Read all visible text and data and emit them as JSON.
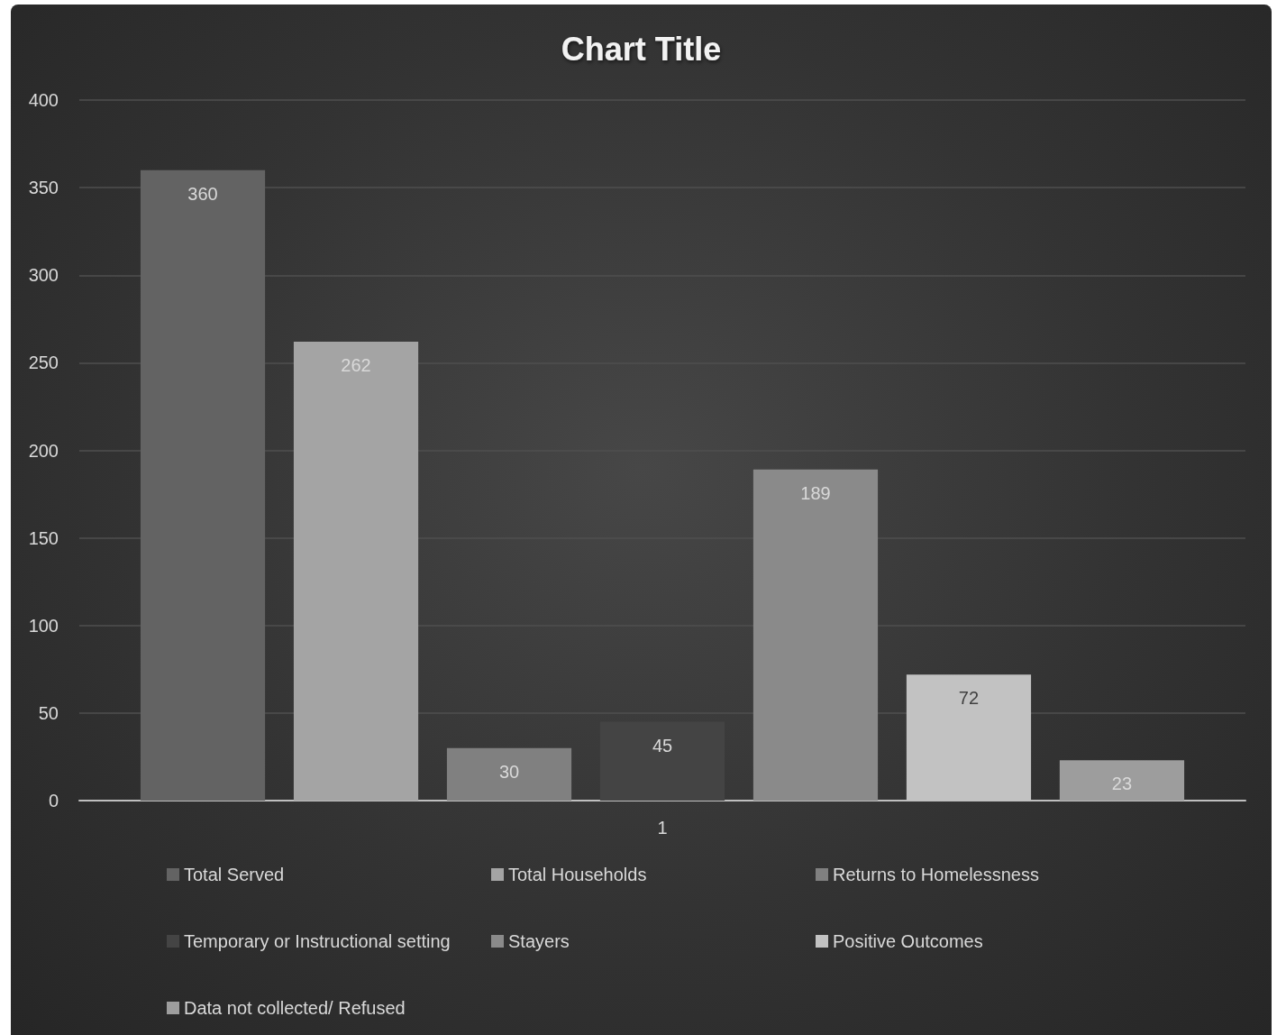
{
  "chart_data": {
    "type": "bar",
    "title": "Chart Title",
    "categories": [
      "1"
    ],
    "series": [
      {
        "name": "Total Served",
        "color": "#636363",
        "values": [
          360
        ]
      },
      {
        "name": "Total Households",
        "color": "#a4a4a4",
        "values": [
          262
        ]
      },
      {
        "name": "Returns to Homelessness",
        "color": "#808080",
        "values": [
          30
        ]
      },
      {
        "name": "Temporary or Instructional setting",
        "color": "#444444",
        "values": [
          45
        ]
      },
      {
        "name": "Stayers",
        "color": "#8a8a8a",
        "values": [
          189
        ]
      },
      {
        "name": "Positive Outcomes",
        "color": "#c2c2c2",
        "values": [
          72
        ]
      },
      {
        "name": "Data not collected/ Refused",
        "color": "#9d9d9d",
        "values": [
          23
        ]
      }
    ],
    "ylim": [
      0,
      400
    ],
    "yticks": [
      0,
      50,
      100,
      150,
      200,
      250,
      300,
      350,
      400
    ],
    "grid": "y",
    "legend": "bottom",
    "data_labels": true
  }
}
